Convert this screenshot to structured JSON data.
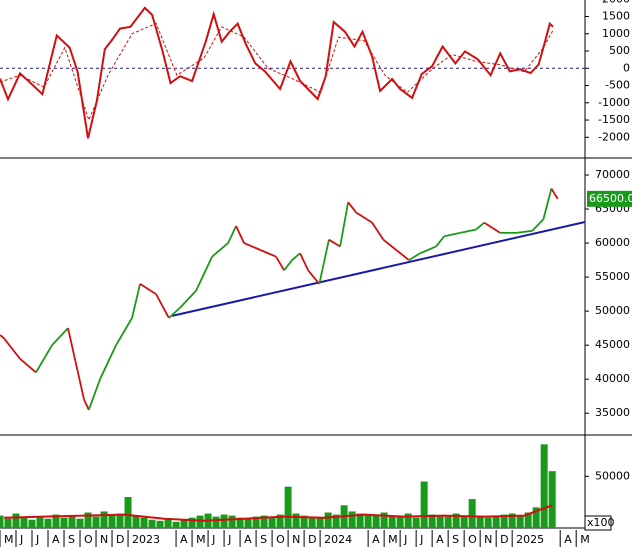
{
  "chart_data": [
    {
      "type": "line",
      "xlim": [
        -0.25,
        36.3
      ],
      "ylim": [
        -2600,
        1920
      ],
      "yticks": [
        -2000,
        -1500,
        -1000,
        -500,
        0,
        500,
        1000,
        1500,
        2000
      ],
      "hline": 0,
      "hline_color": "#1a1a8c",
      "series": [
        {
          "color": "#d01010",
          "dash": false,
          "x": [
            -0.25,
            0.25,
            1,
            1.6,
            2.4,
            2.9,
            3.3,
            4.1,
            4.6,
            5.25,
            5.8,
            6.3,
            6.8,
            7.25,
            7.9,
            8.8,
            9.25,
            9.9,
            10.4,
            11,
            11.75,
            12.6,
            13.1,
            13.6,
            14.1,
            14.6,
            15.1,
            15.7,
            16.3,
            17.25,
            17.9,
            18.5,
            19.6,
            20.1,
            20.6,
            21.3,
            21.9,
            22.4,
            23,
            23.5,
            24.25,
            24.75,
            25.5,
            26.1,
            26.75,
            27.4,
            28.2,
            28.8,
            29.6,
            30.4,
            31,
            31.6,
            32.25,
            32.9,
            33.4,
            33.8,
            34.1,
            34.3
          ],
          "values": [
            -300,
            -900,
            -150,
            -400,
            -750,
            200,
            950,
            600,
            -100,
            -2030,
            -950,
            550,
            850,
            1150,
            1200,
            1750,
            1550,
            500,
            -430,
            -230,
            -370,
            770,
            1570,
            770,
            1060,
            1290,
            710,
            140,
            -90,
            -600,
            200,
            -370,
            -890,
            -230,
            1340,
            1060,
            630,
            1060,
            340,
            -660,
            -310,
            -600,
            -860,
            -170,
            60,
            630,
            140,
            490,
            260,
            -200,
            430,
            -90,
            -30,
            -140,
            110,
            770,
            1290,
            1200
          ]
        },
        {
          "color": "#d01010",
          "dash": true,
          "x": [
            -0.25,
            1,
            2.5,
            3.8,
            5.3,
            6.5,
            8,
            9.5,
            10.8,
            12.5,
            13.6,
            15,
            16.5,
            18,
            19.8,
            20.9,
            22.5,
            23.8,
            25.2,
            26.8,
            28,
            29.5,
            31,
            32.5,
            33.7,
            34.3
          ],
          "values": [
            -400,
            -200,
            -550,
            600,
            -1500,
            -200,
            1000,
            1300,
            -200,
            300,
            1200,
            900,
            0,
            -300,
            -700,
            900,
            800,
            -200,
            -700,
            0,
            400,
            200,
            100,
            -100,
            600,
            1100
          ]
        }
      ]
    },
    {
      "type": "price",
      "xlim": [
        -0.25,
        36.3
      ],
      "ylim": [
        31800,
        72500
      ],
      "yticks": [
        35000,
        40000,
        45000,
        50000,
        55000,
        60000,
        65000,
        70000
      ],
      "up_color": "#1a9a1a",
      "down_color": "#d01010",
      "x": [
        -0.25,
        0,
        1,
        2,
        3,
        4,
        5,
        5.3,
        6,
        7,
        8,
        8.5,
        9.5,
        10.3,
        11,
        12,
        13,
        14,
        14.5,
        15,
        16,
        17,
        17.5,
        18,
        18.5,
        19,
        19.7,
        20.3,
        21,
        21.5,
        22,
        23,
        23.7,
        24.5,
        25.3,
        26,
        27,
        27.5,
        28.5,
        29.5,
        30,
        31,
        32,
        33,
        33.7,
        34.2,
        34.6
      ],
      "values": [
        46500,
        46000,
        43000,
        41000,
        45000,
        47500,
        37000,
        35500,
        40000,
        45000,
        49000,
        54000,
        52500,
        49000,
        50500,
        53000,
        58000,
        60000,
        62500,
        60000,
        59000,
        58000,
        56000,
        57500,
        58500,
        56000,
        54000,
        60500,
        59500,
        66000,
        64500,
        63000,
        60500,
        59000,
        57500,
        58500,
        59500,
        61000,
        61500,
        62000,
        63000,
        61500,
        61500,
        61800,
        63500,
        68000,
        66500
      ],
      "last_value": 66500,
      "last_value_label": "66500.00",
      "last_value_color": "#1a9a1a",
      "trendline": {
        "x": [
          10.5,
          36.3
        ],
        "values": [
          49300,
          63100
        ],
        "color": "#1a1aa6"
      }
    },
    {
      "type": "bar",
      "xlim": [
        -0.25,
        36.3
      ],
      "ylim": [
        0,
        90000
      ],
      "yticks": [
        50000
      ],
      "unit_label": "x100",
      "color": "#1a9a1a",
      "x": [
        -0.25,
        0.25,
        0.75,
        1.25,
        1.75,
        2.25,
        2.75,
        3.25,
        3.75,
        4.25,
        4.75,
        5.25,
        5.75,
        6.25,
        6.75,
        7.25,
        7.75,
        8.25,
        8.75,
        9.25,
        9.75,
        10.25,
        10.75,
        11.25,
        11.75,
        12.25,
        12.75,
        13.25,
        13.75,
        14.25,
        14.75,
        15.25,
        15.75,
        16.25,
        16.75,
        17.25,
        17.75,
        18.25,
        18.75,
        19.25,
        19.75,
        20.25,
        20.75,
        21.25,
        21.75,
        22.25,
        22.75,
        23.25,
        23.75,
        24.25,
        24.75,
        25.25,
        25.75,
        26.25,
        26.75,
        27.25,
        27.75,
        28.25,
        28.75,
        29.25,
        29.75,
        30.25,
        30.75,
        31.25,
        31.75,
        32.25,
        32.75,
        33.25,
        33.75,
        34.25
      ],
      "values": [
        12000,
        9000,
        14000,
        10000,
        8000,
        11000,
        9000,
        13000,
        10000,
        12000,
        9000,
        15000,
        11000,
        16000,
        13000,
        14000,
        30000,
        12000,
        10000,
        8000,
        7000,
        9000,
        6000,
        8000,
        10000,
        12000,
        14000,
        11000,
        13000,
        12000,
        10000,
        9000,
        11000,
        12000,
        10000,
        13000,
        40000,
        14000,
        12000,
        11000,
        10000,
        15000,
        13000,
        22000,
        16000,
        14000,
        12000,
        13000,
        15000,
        11000,
        12000,
        14000,
        10000,
        45000,
        13000,
        12000,
        11000,
        14000,
        12000,
        28000,
        11000,
        10000,
        12000,
        13000,
        14000,
        12000,
        15000,
        20000,
        81000,
        55000
      ],
      "average": {
        "color": "#d01010",
        "x": [
          0,
          2.5,
          5,
          7.5,
          10,
          12.5,
          15,
          17.5,
          20,
          22.5,
          25,
          27.5,
          30,
          32.5,
          34.25
        ],
        "values": [
          10000,
          11000,
          12000,
          13000,
          9000,
          7000,
          9000,
          11000,
          10000,
          13000,
          11000,
          12000,
          11000,
          12000,
          22000
        ]
      },
      "xticks": [
        {
          "value": 0,
          "label": "M"
        },
        {
          "value": 1,
          "label": "J"
        },
        {
          "value": 2,
          "label": "J"
        },
        {
          "value": 3,
          "label": "A"
        },
        {
          "value": 4,
          "label": "S"
        },
        {
          "value": 5,
          "label": "O"
        },
        {
          "value": 6,
          "label": "N"
        },
        {
          "value": 7,
          "label": "D"
        },
        {
          "value": 8,
          "label": "2023"
        },
        {
          "value": 11,
          "label": "A"
        },
        {
          "value": 12,
          "label": "M"
        },
        {
          "value": 13,
          "label": "J"
        },
        {
          "value": 14,
          "label": "J"
        },
        {
          "value": 15,
          "label": "A"
        },
        {
          "value": 16,
          "label": "S"
        },
        {
          "value": 17,
          "label": "O"
        },
        {
          "value": 18,
          "label": "N"
        },
        {
          "value": 19,
          "label": "D"
        },
        {
          "value": 20,
          "label": "2024"
        },
        {
          "value": 23,
          "label": "A"
        },
        {
          "value": 24,
          "label": "M"
        },
        {
          "value": 25,
          "label": "J"
        },
        {
          "value": 26,
          "label": "J"
        },
        {
          "value": 27,
          "label": "A"
        },
        {
          "value": 28,
          "label": "S"
        },
        {
          "value": 29,
          "label": "O"
        },
        {
          "value": 30,
          "label": "N"
        },
        {
          "value": 31,
          "label": "D"
        },
        {
          "value": 32,
          "label": "2025"
        },
        {
          "value": 35,
          "label": "A"
        },
        {
          "value": 36,
          "label": "M"
        }
      ]
    }
  ]
}
